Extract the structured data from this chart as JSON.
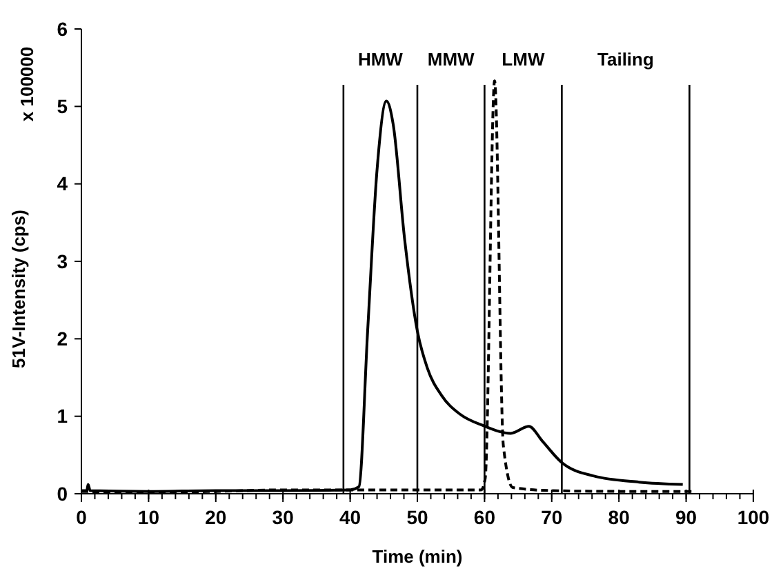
{
  "chart_data": {
    "type": "line",
    "xlabel": "Time (min)",
    "ylabel": "51V-Intensity (cps)",
    "annotations": [
      "x 100000",
      "HMW",
      "MMW",
      "LMW",
      "Tailing"
    ],
    "xlim": [
      0,
      100
    ],
    "xticks": [
      0,
      10,
      20,
      30,
      40,
      50,
      60,
      70,
      80,
      90,
      100
    ],
    "ylim": [
      0,
      6
    ],
    "yticks": [
      0,
      1,
      2,
      3,
      4,
      5,
      6
    ],
    "series": [
      {
        "color": "#000000",
        "line_style": "solid",
        "x": [
          0,
          0.8,
          1,
          1.3,
          10,
          20,
          30,
          40,
          41.3,
          42.6,
          44,
          45.4,
          46.4,
          48.1,
          50,
          51.5,
          53.6,
          56.3,
          59.8,
          63.9,
          66.6,
          68.6,
          71.4,
          76.2,
          83,
          89.5
        ],
        "values": [
          0.04,
          0.04,
          0.12,
          0.04,
          0.03,
          0.04,
          0.04,
          0.05,
          0.09,
          2.1,
          4.18,
          5.07,
          4.77,
          3.29,
          2.1,
          1.62,
          1.27,
          1.03,
          0.88,
          0.78,
          0.87,
          0.68,
          0.41,
          0.23,
          0.15,
          0.12
        ]
      },
      {
        "color": "#000000",
        "line_style": "dashed",
        "x": [
          0,
          10,
          20,
          30,
          40,
          50,
          59.5,
          60.1,
          61.5,
          62.8,
          64.2,
          70,
          80,
          91
        ],
        "values": [
          0.03,
          0.02,
          0.03,
          0.05,
          0.05,
          0.05,
          0.05,
          0.2,
          5.33,
          0.62,
          0.08,
          0.04,
          0.03,
          0.03
        ]
      }
    ],
    "ref_lines": [
      {
        "axis": "x",
        "value": 39
      },
      {
        "axis": "x",
        "value": 50
      },
      {
        "axis": "x",
        "value": 60
      },
      {
        "axis": "x",
        "value": 71.5
      },
      {
        "axis": "x",
        "value": 90.5
      }
    ]
  }
}
